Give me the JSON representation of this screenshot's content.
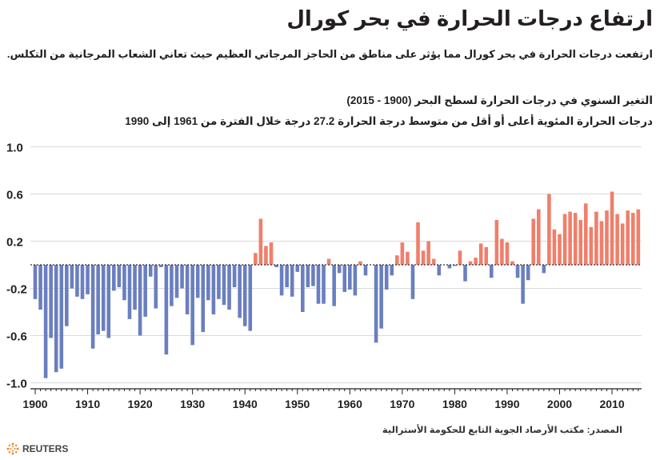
{
  "header": {
    "title": "ارتفاع درجات الحرارة في بحر كورال",
    "subtitle": "ارتفعت درجات الحرارة في بحر كورال مما يؤثر على مناطق من الحاجز المرجاني العظيم حيث تعاني الشعاب المرجانية من التكلس."
  },
  "footer": {
    "source": "المصدر: مكتب الأرصاد الجوية التابع للحكومة الأسترالية",
    "logo": "REUTERS"
  },
  "chart_data": {
    "type": "bar",
    "title": "التغير السنوي في درجات الحرارة لسطح البحر (1900 - 2015)",
    "subtitle": "درجات الحرارة المئوية أعلى أو أقل من متوسط درجة الحرارة 27.2 درجة خلال الفترة من 1961 إلى 1990",
    "xlabel": "",
    "ylabel": "",
    "x_start": 1900,
    "x_end": 2015,
    "ylim": [
      -1.0,
      1.0
    ],
    "yticks": [
      "1.0",
      "0.6",
      "0.2",
      "-0.2",
      "-0.6",
      "-1.0"
    ],
    "ytick_values": [
      1.0,
      0.6,
      0.2,
      -0.2,
      -0.6,
      -1.0
    ],
    "xticks": [
      "1900",
      "1910",
      "1920",
      "1930",
      "1940",
      "1950",
      "1960",
      "1970",
      "1980",
      "1990",
      "2000",
      "2010"
    ],
    "grid": true,
    "colors": {
      "positive": "#ef7f6b",
      "negative": "#6a7fbf"
    },
    "values": [
      -0.29,
      -0.38,
      -0.96,
      -0.62,
      -0.91,
      -0.88,
      -0.52,
      -0.2,
      -0.27,
      -0.29,
      -0.25,
      -0.71,
      -0.59,
      -0.56,
      -0.62,
      -0.22,
      -0.19,
      -0.3,
      -0.46,
      -0.38,
      -0.6,
      -0.44,
      -0.1,
      -0.37,
      -0.02,
      -0.76,
      -0.35,
      -0.28,
      -0.2,
      -0.42,
      -0.68,
      -0.28,
      -0.57,
      -0.3,
      -0.42,
      -0.29,
      -0.34,
      -0.38,
      -0.19,
      -0.45,
      -0.52,
      -0.56,
      0.1,
      0.39,
      0.16,
      0.19,
      -0.02,
      -0.26,
      -0.19,
      -0.27,
      -0.06,
      -0.4,
      -0.19,
      -0.18,
      -0.33,
      -0.33,
      0.05,
      -0.35,
      -0.07,
      -0.23,
      -0.21,
      -0.26,
      0.03,
      -0.09,
      0.0,
      -0.66,
      -0.54,
      -0.21,
      -0.09,
      0.08,
      0.19,
      0.11,
      -0.29,
      0.36,
      0.12,
      0.2,
      0.05,
      -0.09,
      0.0,
      -0.03,
      -0.01,
      0.12,
      -0.14,
      0.03,
      0.06,
      0.18,
      0.15,
      -0.11,
      0.38,
      0.22,
      0.19,
      0.03,
      -0.11,
      -0.33,
      -0.13,
      0.39,
      0.47,
      -0.07,
      0.6,
      0.3,
      0.26,
      0.43,
      0.45,
      0.44,
      0.38,
      0.52,
      0.32,
      0.45,
      0.37,
      0.46,
      0.62,
      0.43,
      0.35,
      0.46,
      0.44,
      0.47
    ]
  }
}
